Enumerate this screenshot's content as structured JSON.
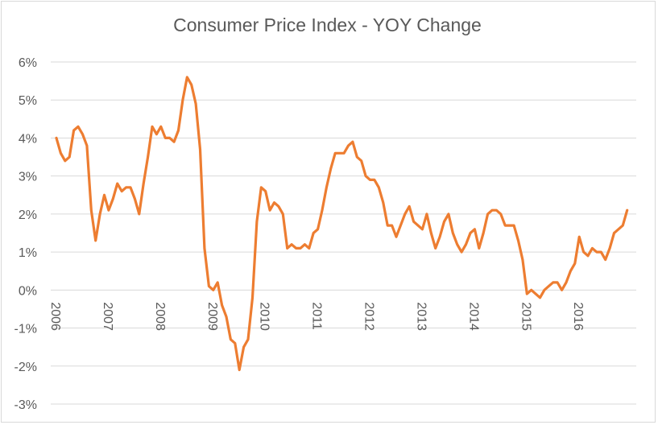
{
  "chart_data": {
    "type": "line",
    "title": "Consumer  Price Index - YOY Change",
    "xlabel": "",
    "ylabel": "",
    "x_tick_labels": [
      "2006",
      "2007",
      "2008",
      "2009",
      "2010",
      "2011",
      "2012",
      "2013",
      "2014",
      "2015",
      "2016"
    ],
    "y_tick_labels": [
      "6%",
      "5%",
      "4%",
      "3%",
      "2%",
      "1%",
      "0%",
      "-1%",
      "-2%",
      "-3%"
    ],
    "ylim": [
      -3,
      6
    ],
    "y_unit": "%",
    "grid": true,
    "legend": "none",
    "line_color": "#ed7d31",
    "series": [
      {
        "start": "2006-01",
        "frequency": "monthly",
        "values": [
          4.0,
          3.6,
          3.4,
          3.5,
          4.2,
          4.3,
          4.1,
          3.8,
          2.1,
          1.3,
          2.0,
          2.5,
          2.1,
          2.4,
          2.8,
          2.6,
          2.7,
          2.7,
          2.4,
          2.0,
          2.8,
          3.5,
          4.3,
          4.1,
          4.3,
          4.0,
          4.0,
          3.9,
          4.2,
          5.0,
          5.6,
          5.4,
          4.9,
          3.7,
          1.1,
          0.1,
          0.0,
          0.2,
          -0.4,
          -0.7,
          -1.3,
          -1.4,
          -2.1,
          -1.5,
          -1.3,
          -0.2,
          1.8,
          2.7,
          2.6,
          2.1,
          2.3,
          2.2,
          2.0,
          1.1,
          1.2,
          1.1,
          1.1,
          1.2,
          1.1,
          1.5,
          1.6,
          2.1,
          2.7,
          3.2,
          3.6,
          3.6,
          3.6,
          3.8,
          3.9,
          3.5,
          3.4,
          3.0,
          2.9,
          2.9,
          2.7,
          2.3,
          1.7,
          1.7,
          1.4,
          1.7,
          2.0,
          2.2,
          1.8,
          1.7,
          1.6,
          2.0,
          1.5,
          1.1,
          1.4,
          1.8,
          2.0,
          1.5,
          1.2,
          1.0,
          1.2,
          1.5,
          1.6,
          1.1,
          1.5,
          2.0,
          2.1,
          2.1,
          2.0,
          1.7,
          1.7,
          1.7,
          1.3,
          0.8,
          -0.1,
          0.0,
          -0.1,
          -0.2,
          0.0,
          0.1,
          0.2,
          0.2,
          0.0,
          0.2,
          0.5,
          0.7,
          1.4,
          1.0,
          0.9,
          1.1,
          1.0,
          1.0,
          0.8,
          1.1,
          1.5,
          1.6,
          1.7,
          2.1
        ]
      }
    ]
  }
}
